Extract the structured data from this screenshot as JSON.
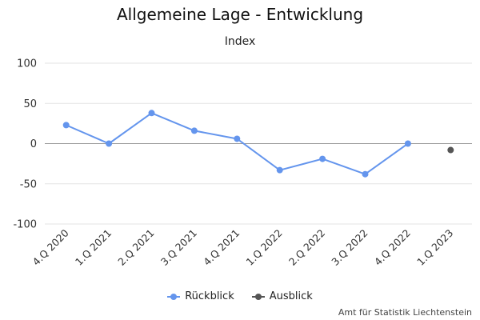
{
  "chart_data": {
    "type": "line",
    "title": "Allgemeine Lage - Entwicklung",
    "subtitle": "Index",
    "categories": [
      "4.Q 2020",
      "1.Q 2021",
      "2.Q 2021",
      "3.Q 2021",
      "4.Q 2021",
      "1.Q 2022",
      "2.Q 2022",
      "3.Q 2022",
      "4.Q 2022",
      "1.Q 2023"
    ],
    "ylim": [
      -100,
      100
    ],
    "yticks": [
      "100",
      "50",
      "0",
      "-50",
      "-100"
    ],
    "grid": true,
    "legend_position": "bottom",
    "series": [
      {
        "name": "Rückblick",
        "color": "#6495ed",
        "values": [
          23,
          0,
          38,
          16,
          6,
          -33,
          -19,
          -38,
          0,
          null
        ]
      },
      {
        "name": "Ausblick",
        "color": "#555555",
        "values": [
          null,
          null,
          null,
          null,
          null,
          null,
          null,
          null,
          null,
          -8
        ]
      }
    ]
  },
  "credit": "Amt für Statistik Liechtenstein"
}
